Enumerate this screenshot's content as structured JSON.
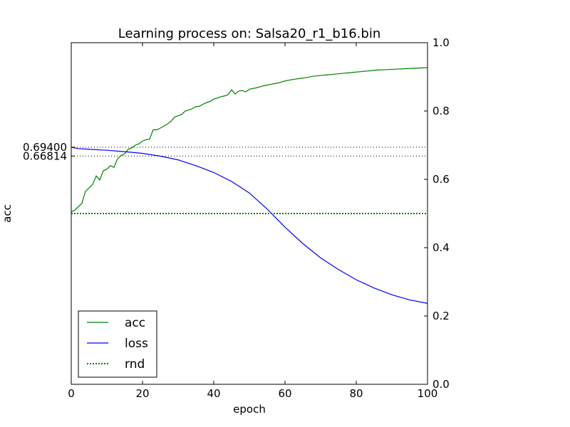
{
  "chart_data": {
    "type": "line",
    "title": "Learning process on: Salsa20_r1_b16.bin",
    "xlabel": "epoch",
    "ylabel": "acc",
    "xlim": [
      0,
      100
    ],
    "ylim": [
      0.0,
      1.0
    ],
    "x_ticks": [
      "0",
      "20",
      "40",
      "60",
      "80",
      "100"
    ],
    "y_ticks_right": [
      "0.0",
      "0.2",
      "0.4",
      "0.6",
      "0.8",
      "1.0"
    ],
    "left_axis_labels": [
      "0.69400",
      "0.66814"
    ],
    "reference_lines": [
      0.694,
      0.66814
    ],
    "legend_position": "lower-left",
    "grid": false,
    "series": [
      {
        "name": "acc",
        "color": "#008000",
        "style": "solid",
        "x": [
          0,
          1,
          2,
          3,
          4,
          5,
          6,
          7,
          8,
          9,
          10,
          11,
          12,
          13,
          14,
          15,
          16,
          17,
          18,
          19,
          20,
          21,
          22,
          23,
          24,
          25,
          26,
          27,
          28,
          29,
          30,
          31,
          32,
          33,
          34,
          35,
          36,
          37,
          38,
          39,
          40,
          41,
          42,
          43,
          44,
          45,
          46,
          47,
          48,
          49,
          50,
          52,
          54,
          56,
          58,
          60,
          62,
          64,
          66,
          68,
          70,
          72,
          74,
          76,
          78,
          80,
          82,
          84,
          86,
          88,
          90,
          92,
          94,
          96,
          98,
          100
        ],
        "values": [
          0.505,
          0.51,
          0.52,
          0.53,
          0.565,
          0.575,
          0.585,
          0.61,
          0.598,
          0.625,
          0.63,
          0.64,
          0.635,
          0.66,
          0.67,
          0.675,
          0.688,
          0.692,
          0.7,
          0.704,
          0.712,
          0.716,
          0.718,
          0.745,
          0.745,
          0.75,
          0.756,
          0.762,
          0.77,
          0.782,
          0.786,
          0.79,
          0.8,
          0.803,
          0.807,
          0.813,
          0.814,
          0.82,
          0.825,
          0.828,
          0.835,
          0.838,
          0.842,
          0.844,
          0.848,
          0.862,
          0.85,
          0.858,
          0.86,
          0.856,
          0.864,
          0.868,
          0.874,
          0.878,
          0.882,
          0.888,
          0.892,
          0.895,
          0.898,
          0.902,
          0.904,
          0.906,
          0.908,
          0.91,
          0.912,
          0.914,
          0.916,
          0.918,
          0.92,
          0.921,
          0.922,
          0.923,
          0.924,
          0.925,
          0.926,
          0.927
        ]
      },
      {
        "name": "loss",
        "color": "#0000ff",
        "style": "solid",
        "x": [
          0,
          2,
          5,
          10,
          15,
          20,
          25,
          30,
          35,
          40,
          45,
          50,
          55,
          60,
          65,
          70,
          75,
          80,
          85,
          90,
          95,
          100
        ],
        "values": [
          0.694,
          0.69,
          0.688,
          0.685,
          0.681,
          0.676,
          0.668,
          0.657,
          0.64,
          0.62,
          0.594,
          0.56,
          0.513,
          0.46,
          0.412,
          0.37,
          0.336,
          0.306,
          0.282,
          0.262,
          0.247,
          0.237
        ]
      },
      {
        "name": "rnd",
        "color": "#008000",
        "style": "dotted",
        "x": [
          0,
          100
        ],
        "values": [
          0.5,
          0.5
        ]
      }
    ]
  }
}
